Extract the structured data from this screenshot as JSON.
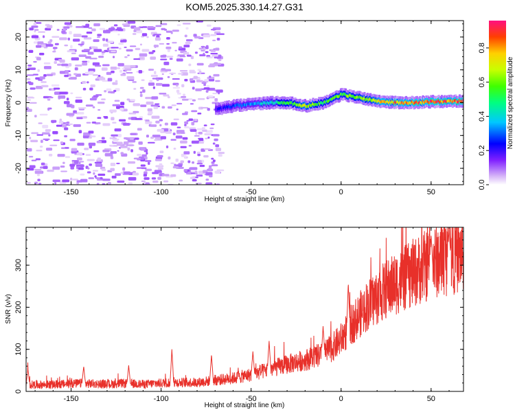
{
  "title": "KOM5.2025.330.14.27.G31",
  "chart_data": [
    {
      "type": "heatmap",
      "name": "spectrogram",
      "xlabel": "Height of straight line (km)",
      "ylabel": "Frequency (Hz)",
      "xlim": [
        -175,
        68
      ],
      "ylim": [
        -25,
        25
      ],
      "xticks": [
        -150,
        -100,
        -50,
        0,
        50
      ],
      "yticks": [
        -20,
        -10,
        0,
        10,
        20
      ],
      "colorbar": {
        "label": "Normalized spectral amplitude",
        "range": [
          0.0,
          0.96
        ],
        "ticks": [
          0.0,
          0.2,
          0.4,
          0.6,
          0.8
        ]
      },
      "signal_track": {
        "description": "Doppler frequency ridge visible from about -70 km upward",
        "x": [
          -70,
          -60,
          -50,
          -40,
          -30,
          -20,
          -10,
          0,
          10,
          20,
          30,
          40,
          50,
          68
        ],
        "freq": [
          -2,
          -1,
          -0.5,
          0,
          0,
          -1,
          0,
          2.5,
          1.5,
          0.5,
          0,
          0,
          0.3,
          0.5
        ],
        "amplitude": [
          0.2,
          0.3,
          0.35,
          0.45,
          0.55,
          0.7,
          0.55,
          0.6,
          0.65,
          0.75,
          0.85,
          0.85,
          0.9,
          0.9
        ]
      },
      "noise_region": {
        "x_range": [
          -175,
          -68
        ],
        "freq_range": [
          -25,
          25
        ],
        "amplitude": [
          0.02,
          0.12
        ]
      }
    },
    {
      "type": "line",
      "name": "snr",
      "xlabel": "Height of straight line (km)",
      "ylabel": "SNR (v/v)",
      "xlim": [
        -175,
        68
      ],
      "ylim": [
        0,
        390
      ],
      "xticks": [
        -150,
        -100,
        -50,
        0,
        50
      ],
      "yticks": [
        0,
        100,
        200,
        300
      ],
      "series": [
        {
          "name": "SNR",
          "color": "#e8302a",
          "trend_x": [
            -175,
            -160,
            -145,
            -130,
            -120,
            -110,
            -95,
            -80,
            -70,
            -60,
            -50,
            -40,
            -30,
            -20,
            -10,
            -5,
            0,
            5,
            15,
            25,
            35,
            45,
            55,
            68
          ],
          "trend_base": [
            15,
            15,
            18,
            16,
            18,
            16,
            20,
            20,
            25,
            30,
            38,
            50,
            62,
            72,
            85,
            100,
            120,
            150,
            200,
            235,
            260,
            285,
            305,
            320
          ],
          "peaks": [
            {
              "x": -174,
              "y": 55
            },
            {
              "x": -143,
              "y": 60
            },
            {
              "x": -118,
              "y": 62
            },
            {
              "x": -94,
              "y": 100
            },
            {
              "x": -72,
              "y": 88
            },
            {
              "x": -49,
              "y": 95
            },
            {
              "x": -40,
              "y": 120
            },
            {
              "x": -10,
              "y": 155
            },
            {
              "x": 4,
              "y": 258
            },
            {
              "x": 50,
              "y": 370
            },
            {
              "x": 60,
              "y": 385
            }
          ]
        }
      ]
    }
  ]
}
